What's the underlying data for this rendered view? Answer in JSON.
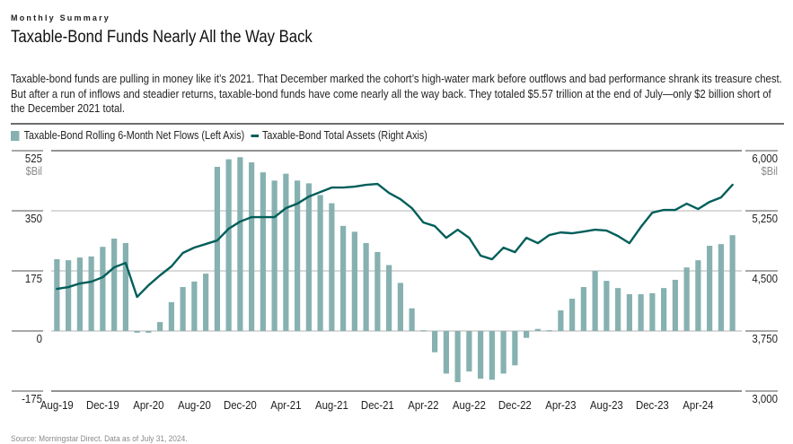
{
  "header": {
    "eyebrow": "Monthly Summary",
    "title": "Taxable-Bond Funds Nearly All the Way Back",
    "description": "Taxable-bond funds are pulling in money like it’s 2021. That December marked the cohort’s high-water mark before outflows and bad performance shrank its treasure chest. But after a run of inflows and steadier returns, taxable-bond funds have come nearly all the way back. They totaled $5.57 trillion at the end of July—only $2 billion short of the December 2021 total."
  },
  "legend": {
    "bars_label": "Taxable-Bond Rolling 6-Month Net Flows (Left Axis)",
    "line_label": "Taxable-Bond Total Assets (Right Axis)"
  },
  "footer": {
    "source": "Source: Morningstar Direct. Data as of July 31, 2024."
  },
  "colors": {
    "bars": "#86b1b0",
    "line": "#005e5a",
    "grid": "#d9d9d9",
    "axis_rule": "#8c8c8c"
  },
  "chart_data": {
    "type": "bar+line",
    "title": "Taxable-Bond Funds Nearly All the Way Back",
    "left_axis": {
      "label": "$Bil",
      "ticks": [
        525,
        350,
        175,
        0,
        -175
      ],
      "tick_labels": [
        "525",
        "350",
        "175",
        "0",
        "-175"
      ],
      "range": [
        -175,
        525
      ]
    },
    "right_axis": {
      "label": "$Bil",
      "ticks": [
        6000,
        5250,
        4500,
        3750,
        3000
      ],
      "tick_labels": [
        "6,000",
        "5,250",
        "4,500",
        "3,750",
        "3,000"
      ],
      "range": [
        3000,
        6000
      ]
    },
    "x_tick_labels": [
      "Aug-19",
      "Dec-19",
      "Apr-20",
      "Aug-20",
      "Dec-20",
      "Apr-21",
      "Aug-21",
      "Dec-21",
      "Apr-22",
      "Aug-22",
      "Dec-22",
      "Apr-23",
      "Aug-23",
      "Dec-23",
      "Apr-24"
    ],
    "x_tick_every": 4,
    "grid": true,
    "legend_position": "top-left",
    "categories": [
      "Aug-19",
      "Sep-19",
      "Oct-19",
      "Nov-19",
      "Dec-19",
      "Jan-20",
      "Feb-20",
      "Mar-20",
      "Apr-20",
      "May-20",
      "Jun-20",
      "Jul-20",
      "Aug-20",
      "Sep-20",
      "Oct-20",
      "Nov-20",
      "Dec-20",
      "Jan-21",
      "Feb-21",
      "Mar-21",
      "Apr-21",
      "May-21",
      "Jun-21",
      "Jul-21",
      "Aug-21",
      "Sep-21",
      "Oct-21",
      "Nov-21",
      "Dec-21",
      "Jan-22",
      "Feb-22",
      "Mar-22",
      "Apr-22",
      "May-22",
      "Jun-22",
      "Jul-22",
      "Aug-22",
      "Sep-22",
      "Oct-22",
      "Nov-22",
      "Dec-22",
      "Jan-23",
      "Feb-23",
      "Mar-23",
      "Apr-23",
      "May-23",
      "Jun-23",
      "Jul-23",
      "Aug-23",
      "Sep-23",
      "Oct-23",
      "Nov-23",
      "Dec-23",
      "Jan-24",
      "Feb-24",
      "Mar-24",
      "Apr-24",
      "May-24",
      "Jun-24",
      "Jul-24"
    ],
    "series": [
      {
        "name": "Taxable-Bond Rolling 6-Month Net Flows (Left Axis)",
        "type": "bar",
        "axis": "left",
        "values": [
          209,
          206,
          214,
          217,
          245,
          269,
          256,
          -5,
          -5,
          26,
          84,
          128,
          144,
          167,
          478,
          500,
          506,
          491,
          462,
          438,
          458,
          438,
          430,
          396,
          372,
          306,
          289,
          256,
          230,
          192,
          140,
          66,
          2,
          -62,
          -124,
          -149,
          -118,
          -139,
          -142,
          -124,
          -100,
          -20,
          6,
          2,
          60,
          94,
          128,
          175,
          146,
          125,
          107,
          107,
          110,
          125,
          149,
          185,
          206,
          248,
          253,
          279
        ]
      },
      {
        "name": "Taxable-Bond Total Assets (Right Axis)",
        "type": "line",
        "axis": "right",
        "values": [
          4276,
          4298,
          4343,
          4365,
          4421,
          4544,
          4600,
          4175,
          4320,
          4444,
          4556,
          4724,
          4791,
          4835,
          4880,
          5026,
          5115,
          5171,
          5171,
          5171,
          5283,
          5339,
          5428,
          5484,
          5540,
          5540,
          5551,
          5574,
          5585,
          5473,
          5395,
          5283,
          5104,
          5059,
          4913,
          5014,
          4913,
          4690,
          4645,
          4790,
          4734,
          4913,
          4846,
          4947,
          4980,
          4969,
          4991,
          5014,
          5003,
          4935,
          4846,
          5048,
          5227,
          5261,
          5261,
          5339,
          5272,
          5361,
          5417,
          5574
        ]
      }
    ]
  }
}
